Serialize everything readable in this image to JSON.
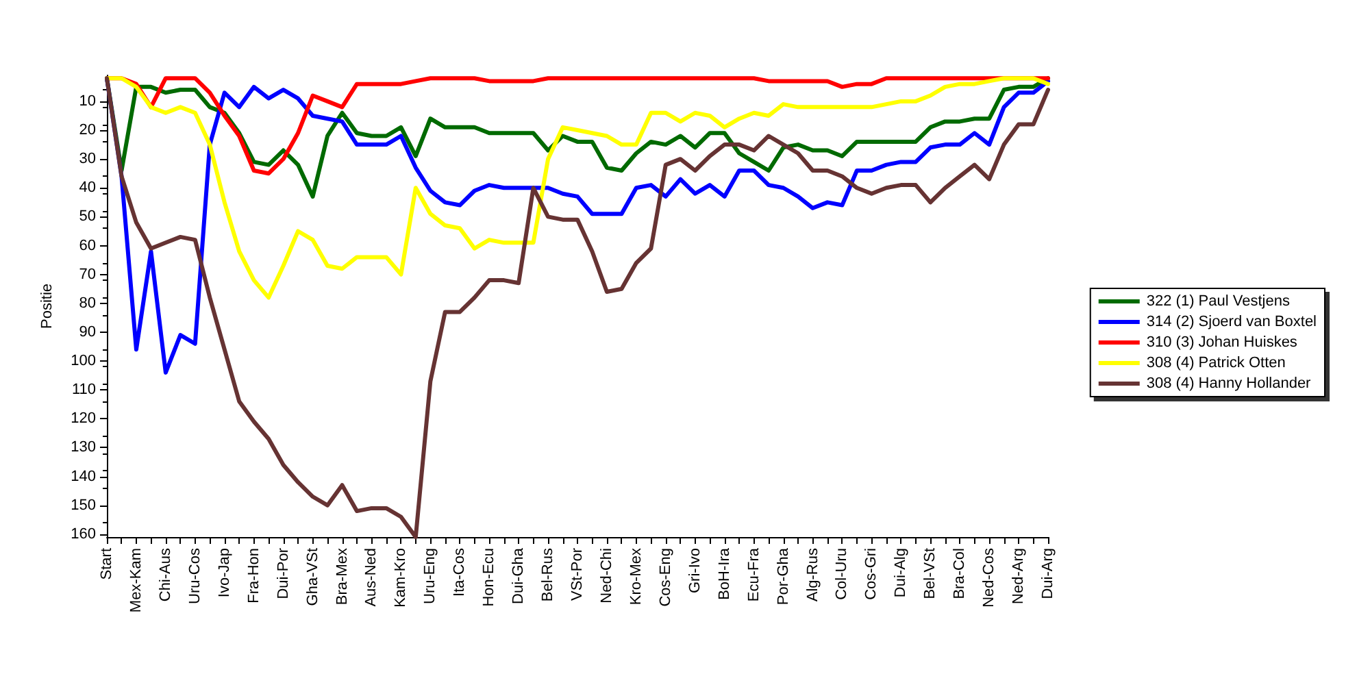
{
  "chart_data": {
    "type": "line",
    "ylabel": "Positie",
    "categories": [
      "Start",
      null,
      "Mex-Kam",
      null,
      "Chi-Aus",
      null,
      "Uru-Cos",
      null,
      "Ivo-Jap",
      null,
      "Fra-Hon",
      null,
      "Dui-Por",
      null,
      "Gha-VSt",
      null,
      "Bra-Mex",
      null,
      "Aus-Ned",
      null,
      "Kam-Kro",
      null,
      "Uru-Eng",
      null,
      "Ita-Cos",
      null,
      "Hon-Ecu",
      null,
      "Dui-Gha",
      null,
      "Bel-Rus",
      null,
      "VSt-Por",
      null,
      "Ned-Chi",
      null,
      "Kro-Mex",
      null,
      "Cos-Eng",
      null,
      "Gri-Ivo",
      null,
      "BoH-Ira",
      null,
      "Ecu-Fra",
      null,
      "Por-Gha",
      null,
      "Alg-Rus",
      null,
      "Col-Uru",
      null,
      "Cos-Gri",
      null,
      "Dui-Alg",
      null,
      "Bel-VSt",
      null,
      "Bra-Col",
      null,
      "Ned-Cos",
      null,
      "Ned-Arg",
      null,
      "Dui-Arg"
    ],
    "series": [
      {
        "name": "322 (1) Paul Vestjens",
        "color": "#006a00",
        "values": [
          2,
          34,
          5,
          5,
          7,
          6,
          6,
          12,
          14,
          21,
          31,
          32,
          27,
          32,
          43,
          22,
          14,
          21,
          22,
          22,
          19,
          29,
          16,
          19,
          19,
          19,
          21,
          21,
          21,
          21,
          27,
          22,
          24,
          24,
          33,
          34,
          28,
          24,
          25,
          22,
          26,
          21,
          21,
          28,
          31,
          34,
          26,
          25,
          27,
          27,
          29,
          24,
          24,
          24,
          24,
          24,
          19,
          17,
          17,
          16,
          16,
          6,
          5,
          5,
          2
        ]
      },
      {
        "name": "314 (2) Sjoerd van Boxtel",
        "color": "#0000ff",
        "values": [
          2,
          36,
          96,
          62,
          104,
          91,
          94,
          25,
          7,
          12,
          5,
          9,
          6,
          9,
          15,
          16,
          17,
          25,
          25,
          25,
          22,
          33,
          41,
          45,
          46,
          41,
          39,
          40,
          40,
          40,
          40,
          42,
          43,
          49,
          49,
          49,
          40,
          39,
          43,
          37,
          42,
          39,
          43,
          34,
          34,
          39,
          40,
          43,
          47,
          45,
          46,
          34,
          34,
          32,
          31,
          31,
          26,
          25,
          25,
          21,
          25,
          12,
          7,
          7,
          3
        ]
      },
      {
        "name": "310 (3) Johan Huiskes",
        "color": "#ff0000",
        "values": [
          2,
          2,
          4,
          12,
          2,
          2,
          2,
          7,
          15,
          22,
          34,
          35,
          30,
          21,
          8,
          10,
          12,
          4,
          4,
          4,
          4,
          3,
          2,
          2,
          2,
          2,
          3,
          3,
          3,
          3,
          2,
          2,
          2,
          2,
          2,
          2,
          2,
          2,
          2,
          2,
          2,
          2,
          2,
          2,
          2,
          3,
          3,
          3,
          3,
          3,
          5,
          4,
          4,
          2,
          2,
          2,
          2,
          2,
          2,
          2,
          2,
          2,
          2,
          2,
          2
        ]
      },
      {
        "name": "308 (4) Patrick Otten",
        "color": "#ffff00",
        "values": [
          2,
          2,
          5,
          12,
          14,
          12,
          14,
          25,
          45,
          62,
          72,
          78,
          67,
          55,
          58,
          67,
          68,
          64,
          64,
          64,
          70,
          40,
          49,
          53,
          54,
          61,
          58,
          59,
          59,
          59,
          30,
          19,
          20,
          21,
          22,
          25,
          25,
          14,
          14,
          17,
          14,
          15,
          19,
          16,
          14,
          15,
          11,
          12,
          12,
          12,
          12,
          12,
          12,
          11,
          10,
          10,
          8,
          5,
          4,
          4,
          3,
          2,
          2,
          2,
          4
        ]
      },
      {
        "name": "308 (4) Hanny Hollander",
        "color": "#663333",
        "values": [
          2,
          36,
          52,
          61,
          59,
          57,
          58,
          78,
          96,
          114,
          121,
          127,
          136,
          142,
          147,
          150,
          143,
          152,
          151,
          151,
          154,
          161,
          107,
          83,
          83,
          78,
          72,
          72,
          73,
          40,
          50,
          51,
          51,
          62,
          76,
          75,
          66,
          61,
          32,
          30,
          34,
          29,
          25,
          25,
          27,
          22,
          25,
          28,
          34,
          34,
          36,
          40,
          42,
          40,
          39,
          39,
          45,
          40,
          36,
          32,
          37,
          25,
          18,
          18,
          6
        ]
      }
    ],
    "ylim": [
      161,
      1
    ],
    "yticks": [
      10,
      20,
      30,
      40,
      50,
      60,
      70,
      80,
      90,
      100,
      110,
      120,
      130,
      140,
      150,
      160
    ],
    "grid": false,
    "legend": "right",
    "marker": "none",
    "line_style": "solid"
  }
}
